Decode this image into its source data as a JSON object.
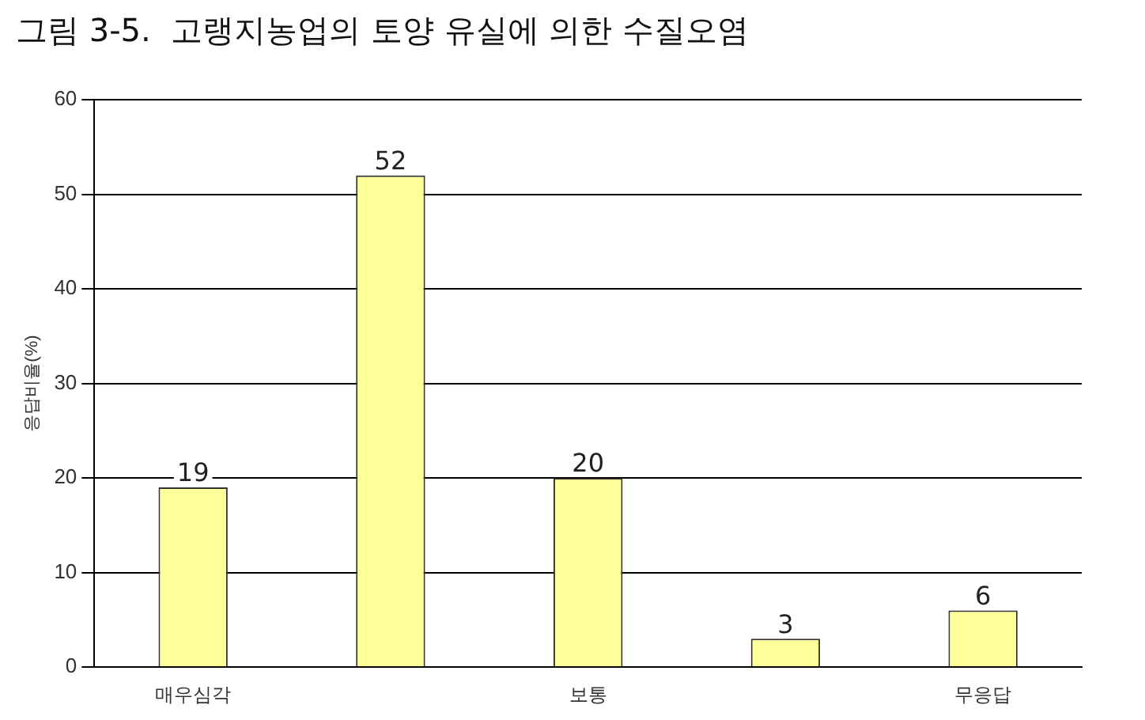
{
  "chart_data": {
    "type": "bar",
    "title": "그림 3-5.  고랭지농업의 토양 유실에 의한 수질오염",
    "ylabel": "응답비율(%)",
    "categories": [
      "매우심각",
      null,
      "보통",
      null,
      "무응답"
    ],
    "values": [
      19,
      52,
      20,
      3,
      6
    ],
    "color": "#ffff99",
    "ylim": [
      0,
      60
    ],
    "yticks": [
      0,
      10,
      20,
      30,
      40,
      50,
      60
    ],
    "grid": "y",
    "legend": false,
    "data_labels": true
  }
}
